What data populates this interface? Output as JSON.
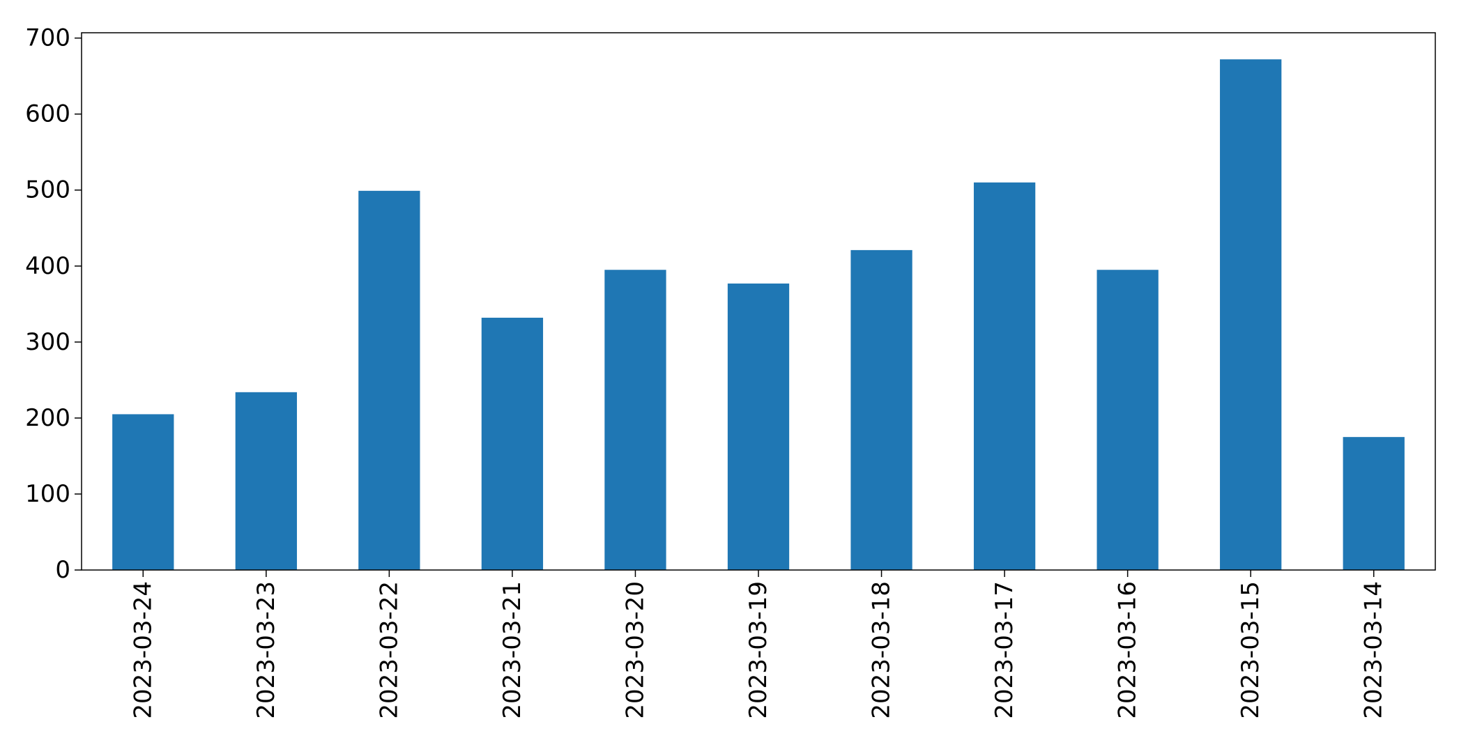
{
  "chart_data": {
    "type": "bar",
    "title": "",
    "xlabel": "",
    "ylabel": "",
    "categories": [
      "2023-03-24",
      "2023-03-23",
      "2023-03-22",
      "2023-03-21",
      "2023-03-20",
      "2023-03-19",
      "2023-03-18",
      "2023-03-17",
      "2023-03-16",
      "2023-03-15",
      "2023-03-14"
    ],
    "values": [
      205,
      234,
      499,
      332,
      395,
      377,
      421,
      510,
      395,
      672,
      175
    ],
    "ylim": [
      0,
      707
    ],
    "yticks": [
      0,
      100,
      200,
      300,
      400,
      500,
      600,
      700
    ],
    "ytick_labels": [
      "0",
      "100",
      "200",
      "300",
      "400",
      "500",
      "600",
      "700"
    ],
    "bar_color": "#1f77b4",
    "grid": false,
    "legend": "none"
  }
}
